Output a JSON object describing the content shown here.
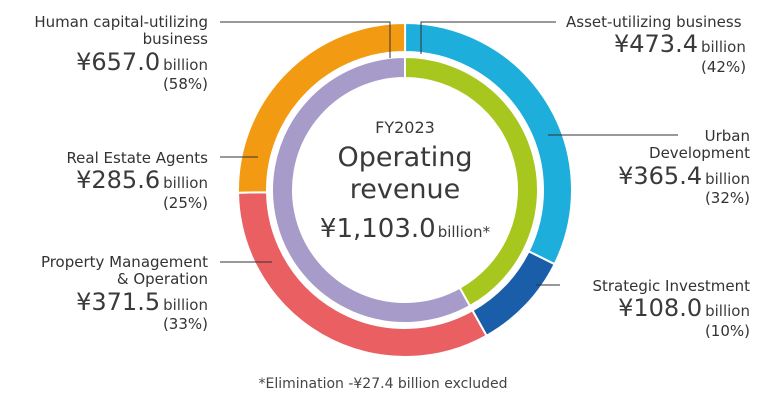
{
  "chart_data": {
    "type": "pie",
    "center": {
      "fy": "FY2023",
      "title_line1": "Operating",
      "title_line2": "revenue",
      "total": "¥1,103.0",
      "total_unit": "billion*"
    },
    "groups": [
      {
        "name": "Asset-utilizing business",
        "amount": "¥473.4",
        "unit": "billion",
        "percent_label": "(42%)",
        "value": 473.4,
        "color": "#a7c71f",
        "segments": [
          {
            "name": "Urban Development",
            "amount": "¥365.4",
            "unit": "billion",
            "percent_label": "(32%)",
            "value": 365.4,
            "color": "#1eaedb"
          },
          {
            "name": "Strategic Investment",
            "amount": "¥108.0",
            "unit": "billion",
            "percent_label": "(10%)",
            "value": 108.0,
            "color": "#1a5ea9"
          }
        ]
      },
      {
        "name": "Human capital-utilizing business",
        "amount": "¥657.0",
        "unit": "billion",
        "percent_label": "(58%)",
        "value": 657.0,
        "color": "#a79cc9",
        "segments": [
          {
            "name": "Property Management & Operation",
            "amount": "¥371.5",
            "unit": "billion",
            "percent_label": "(33%)",
            "value": 371.5,
            "color": "#ea5f61"
          },
          {
            "name": "Real Estate Agents",
            "amount": "¥285.6",
            "unit": "billion",
            "percent_label": "(25%)",
            "value": 285.6,
            "color": "#f39a13"
          }
        ]
      }
    ],
    "footnote": "*Elimination -¥27.4 billion excluded"
  }
}
